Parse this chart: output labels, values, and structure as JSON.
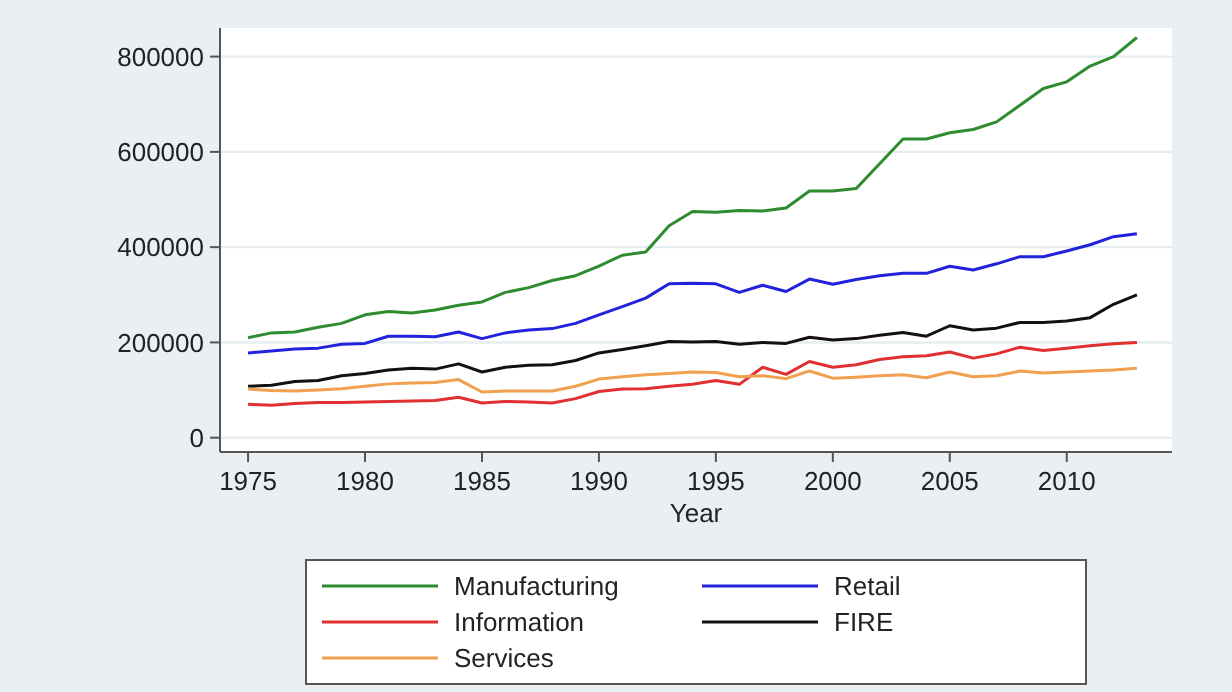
{
  "chart_data": {
    "type": "line",
    "xlabel": "Year",
    "x": [
      1975,
      1976,
      1977,
      1978,
      1979,
      1980,
      1981,
      1982,
      1983,
      1984,
      1985,
      1986,
      1987,
      1988,
      1989,
      1990,
      1991,
      1992,
      1993,
      1994,
      1995,
      1996,
      1997,
      1998,
      1999,
      2000,
      2001,
      2002,
      2003,
      2004,
      2005,
      2006,
      2007,
      2008,
      2009,
      2010,
      2011,
      2012,
      2013
    ],
    "xlim": [
      1973.8,
      2014.5
    ],
    "xticks": [
      1975,
      1980,
      1985,
      1990,
      1995,
      2000,
      2005,
      2010
    ],
    "ylim": [
      -30000,
      860000
    ],
    "yticks": [
      0,
      200000,
      400000,
      600000,
      800000
    ],
    "grid": "y",
    "legend": "bottom",
    "series": [
      {
        "name": "Manufacturing",
        "color": "#2e8b2e",
        "values": [
          210000,
          220000,
          222000,
          232000,
          240000,
          258000,
          265000,
          262000,
          268000,
          278000,
          285000,
          305000,
          315000,
          330000,
          340000,
          360000,
          383000,
          390000,
          445000,
          475000,
          473000,
          477000,
          476000,
          482000,
          518000,
          518000,
          523000,
          575000,
          627000,
          627000,
          640000,
          647000,
          663000,
          698000,
          733000,
          747000,
          780000,
          800000,
          840000
        ]
      },
      {
        "name": "Retail",
        "color": "#2222dd",
        "values": [
          178000,
          182000,
          186000,
          188000,
          196000,
          198000,
          213000,
          213000,
          212000,
          222000,
          208000,
          220000,
          226000,
          229000,
          240000,
          258000,
          275000,
          293000,
          323000,
          324000,
          323000,
          305000,
          320000,
          307000,
          333000,
          322000,
          332000,
          340000,
          345000,
          345000,
          360000,
          352000,
          365000,
          380000,
          380000,
          392000,
          405000,
          422000,
          428000
        ]
      },
      {
        "name": "Information",
        "color": "#e03030",
        "values": [
          70000,
          68000,
          72000,
          74000,
          74000,
          75000,
          76000,
          77000,
          78000,
          85000,
          73000,
          76000,
          75000,
          73000,
          82000,
          97000,
          102000,
          103000,
          108000,
          112000,
          120000,
          112000,
          148000,
          133000,
          160000,
          148000,
          153000,
          164000,
          170000,
          172000,
          180000,
          167000,
          176000,
          190000,
          183000,
          188000,
          193000,
          197000,
          200000
        ]
      },
      {
        "name": "FIRE",
        "color": "#111111",
        "values": [
          108000,
          110000,
          118000,
          120000,
          130000,
          135000,
          142000,
          146000,
          144000,
          155000,
          138000,
          148000,
          152000,
          153000,
          162000,
          178000,
          185000,
          193000,
          202000,
          201000,
          202000,
          196000,
          200000,
          198000,
          211000,
          205000,
          208000,
          215000,
          221000,
          213000,
          235000,
          226000,
          230000,
          242000,
          242000,
          245000,
          252000,
          280000,
          300000
        ]
      },
      {
        "name": "Services",
        "color": "#f0a050",
        "values": [
          102000,
          99000,
          98000,
          100000,
          103000,
          108000,
          113000,
          115000,
          116000,
          122000,
          96000,
          98000,
          98000,
          98000,
          108000,
          123000,
          128000,
          132000,
          135000,
          138000,
          137000,
          128000,
          130000,
          124000,
          140000,
          125000,
          127000,
          130000,
          132000,
          126000,
          138000,
          128000,
          130000,
          140000,
          136000,
          138000,
          140000,
          142000,
          146000
        ]
      }
    ]
  }
}
